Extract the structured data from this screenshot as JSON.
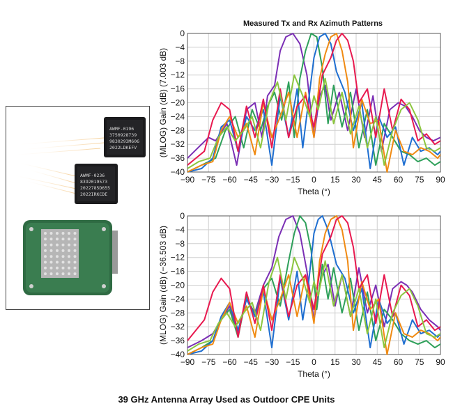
{
  "caption": "39 GHz Antenna Array Used as Outdoor CPE Units",
  "chips": [
    {
      "lines": [
        "AWMF-0196",
        "3750928739",
        "9830293M606",
        "2022LDKEFV"
      ]
    },
    {
      "lines": [
        "AWMF-0236",
        "8392019573",
        "2022785D655",
        "2022IRKCDE"
      ]
    }
  ],
  "colors": {
    "series": [
      "#7b2fb5",
      "#2ea05a",
      "#1f6fd1",
      "#f08a12",
      "#e8194f",
      "#8cc63f"
    ]
  },
  "chart_data": [
    {
      "type": "line",
      "title": "Measured Tx and Rx Azimuth Patterns",
      "xlabel": "Theta (°)",
      "ylabel": "(MLOG) Gain (dB) (7.003 dB)",
      "xlim": [
        -90,
        90
      ],
      "ylim": [
        -40,
        0
      ],
      "xticks": [
        -90,
        -75,
        -60,
        -45,
        -30,
        -15,
        0,
        15,
        30,
        45,
        60,
        75,
        90
      ],
      "yticks": [
        0,
        -4,
        -8,
        -12,
        -16,
        -20,
        -24,
        -28,
        -32,
        -36,
        -40
      ],
      "grid": true,
      "series": [
        {
          "color": "#7b2fb5",
          "x": [
            -90,
            -80,
            -75,
            -70,
            -62,
            -55,
            -48,
            -42,
            -37,
            -33,
            -28,
            -24,
            -20,
            -15,
            -10,
            -5,
            0,
            4,
            8,
            12,
            18,
            24,
            30,
            36,
            42,
            48,
            54,
            60,
            65,
            70,
            75,
            80,
            85,
            90
          ],
          "y": [
            -36,
            -32,
            -30,
            -31,
            -26,
            -38,
            -22,
            -20,
            -30,
            -18,
            -15,
            -5,
            -1,
            0,
            -3,
            -12,
            -30,
            -18,
            -15,
            -25,
            -17,
            -28,
            -16,
            -30,
            -18,
            -34,
            -22,
            -20,
            -21,
            -24,
            -28,
            -30,
            -31,
            -30
          ]
        },
        {
          "color": "#2ea05a",
          "x": [
            -90,
            -80,
            -70,
            -63,
            -56,
            -50,
            -44,
            -38,
            -33,
            -28,
            -23,
            -18,
            -14,
            -10,
            -6,
            -2,
            2,
            6,
            10,
            14,
            20,
            26,
            32,
            38,
            44,
            50,
            56,
            62,
            68,
            74,
            80,
            86,
            90
          ],
          "y": [
            -40,
            -38,
            -36,
            -28,
            -24,
            -33,
            -22,
            -28,
            -21,
            -17,
            -25,
            -14,
            -30,
            -13,
            -5,
            0,
            -1,
            -10,
            -26,
            -15,
            -27,
            -17,
            -33,
            -22,
            -38,
            -26,
            -30,
            -34,
            -35,
            -37,
            -36,
            -38,
            -37
          ]
        },
        {
          "color": "#1f6fd1",
          "x": [
            -90,
            -80,
            -72,
            -66,
            -60,
            -54,
            -48,
            -42,
            -36,
            -30,
            -24,
            -18,
            -12,
            -8,
            -4,
            0,
            4,
            8,
            12,
            16,
            22,
            28,
            34,
            40,
            46,
            52,
            58,
            64,
            70,
            76,
            82,
            88,
            90
          ],
          "y": [
            -40,
            -39,
            -36,
            -27,
            -25,
            -34,
            -24,
            -28,
            -22,
            -38,
            -18,
            -30,
            -16,
            -33,
            -20,
            -7,
            -1,
            0,
            -3,
            -11,
            -17,
            -28,
            -20,
            -39,
            -24,
            -30,
            -27,
            -38,
            -30,
            -34,
            -33,
            -35,
            -34
          ]
        },
        {
          "color": "#f08a12",
          "x": [
            -90,
            -80,
            -72,
            -66,
            -60,
            -54,
            -48,
            -42,
            -36,
            -30,
            -24,
            -18,
            -12,
            -6,
            0,
            4,
            8,
            12,
            16,
            20,
            24,
            28,
            34,
            40,
            46,
            52,
            58,
            64,
            70,
            76,
            82,
            88,
            90
          ],
          "y": [
            -40,
            -38,
            -37,
            -28,
            -24,
            -30,
            -26,
            -35,
            -20,
            -30,
            -24,
            -17,
            -30,
            -17,
            -30,
            -13,
            -6,
            -1,
            0,
            -5,
            -14,
            -33,
            -19,
            -26,
            -25,
            -40,
            -28,
            -34,
            -35,
            -33,
            -34,
            -36,
            -35
          ]
        },
        {
          "color": "#e8194f",
          "x": [
            -90,
            -84,
            -78,
            -72,
            -66,
            -60,
            -54,
            -48,
            -42,
            -36,
            -30,
            -24,
            -18,
            -12,
            -6,
            0,
            6,
            12,
            16,
            20,
            24,
            28,
            32,
            38,
            44,
            50,
            56,
            62,
            68,
            74,
            80,
            86,
            90
          ],
          "y": [
            -38,
            -36,
            -34,
            -25,
            -20,
            -22,
            -34,
            -21,
            -30,
            -19,
            -33,
            -16,
            -30,
            -21,
            -18,
            -27,
            -12,
            -7,
            -2,
            0,
            -2,
            -8,
            -20,
            -16,
            -30,
            -16,
            -28,
            -19,
            -22,
            -31,
            -29,
            -32,
            -31
          ]
        },
        {
          "color": "#8cc63f",
          "x": [
            -90,
            -82,
            -74,
            -68,
            -62,
            -56,
            -50,
            -44,
            -38,
            -32,
            -26,
            -20,
            -14,
            -8,
            -3,
            0,
            3,
            8,
            14,
            20,
            26,
            32,
            38,
            44,
            50,
            56,
            62,
            68,
            74,
            80,
            86,
            90
          ],
          "y": [
            -39,
            -37,
            -36,
            -30,
            -27,
            -31,
            -28,
            -24,
            -33,
            -20,
            -14,
            -25,
            -12,
            -18,
            -24,
            -18,
            -22,
            -13,
            -26,
            -17,
            -29,
            -21,
            -33,
            -24,
            -38,
            -28,
            -22,
            -20,
            -25,
            -33,
            -34,
            -33
          ]
        }
      ]
    },
    {
      "type": "line",
      "title": "",
      "xlabel": "Theta (°)",
      "ylabel": "(MLOG) Gain (dB) (-36.503 dB)",
      "xlim": [
        -90,
        90
      ],
      "ylim": [
        -40,
        0
      ],
      "xticks": [
        -90,
        -75,
        -60,
        -45,
        -30,
        -15,
        0,
        15,
        30,
        45,
        60,
        75,
        90
      ],
      "yticks": [
        0,
        -4,
        -8,
        -12,
        -16,
        -20,
        -24,
        -28,
        -32,
        -36,
        -40
      ],
      "grid": true,
      "series": [
        {
          "color": "#7b2fb5",
          "x": [
            -90,
            -80,
            -72,
            -66,
            -60,
            -54,
            -48,
            -42,
            -36,
            -30,
            -25,
            -20,
            -15,
            -10,
            -5,
            0,
            5,
            10,
            15,
            20,
            26,
            32,
            38,
            44,
            50,
            56,
            62,
            66,
            70,
            76,
            82,
            88,
            90
          ],
          "y": [
            -38,
            -36,
            -34,
            -30,
            -26,
            -34,
            -24,
            -28,
            -20,
            -15,
            -6,
            -1,
            0,
            -5,
            -16,
            -30,
            -18,
            -14,
            -26,
            -17,
            -29,
            -15,
            -28,
            -20,
            -32,
            -21,
            -19,
            -20,
            -22,
            -27,
            -30,
            -32,
            -33
          ]
        },
        {
          "color": "#2ea05a",
          "x": [
            -90,
            -80,
            -72,
            -66,
            -60,
            -54,
            -48,
            -42,
            -36,
            -30,
            -24,
            -18,
            -14,
            -10,
            -6,
            -2,
            2,
            6,
            10,
            14,
            20,
            26,
            32,
            38,
            44,
            50,
            56,
            62,
            68,
            74,
            80,
            86,
            90
          ],
          "y": [
            -40,
            -38,
            -36,
            -30,
            -27,
            -35,
            -23,
            -29,
            -21,
            -18,
            -26,
            -13,
            -5,
            0,
            -2,
            -10,
            -27,
            -14,
            -24,
            -15,
            -28,
            -18,
            -33,
            -22,
            -36,
            -27,
            -30,
            -34,
            -36,
            -37,
            -36,
            -38,
            -37
          ]
        },
        {
          "color": "#1f6fd1",
          "x": [
            -90,
            -80,
            -72,
            -66,
            -60,
            -54,
            -48,
            -42,
            -36,
            -30,
            -24,
            -18,
            -12,
            -8,
            -4,
            0,
            3,
            6,
            10,
            16,
            22,
            28,
            34,
            40,
            46,
            52,
            58,
            64,
            70,
            76,
            82,
            88,
            90
          ],
          "y": [
            -40,
            -39,
            -36,
            -29,
            -25,
            -33,
            -24,
            -29,
            -22,
            -38,
            -18,
            -30,
            -16,
            -30,
            -20,
            -5,
            -1,
            0,
            -4,
            -14,
            -18,
            -28,
            -21,
            -38,
            -24,
            -31,
            -28,
            -37,
            -30,
            -34,
            -33,
            -35,
            -34
          ]
        },
        {
          "color": "#f08a12",
          "x": [
            -90,
            -80,
            -72,
            -66,
            -60,
            -54,
            -48,
            -42,
            -36,
            -30,
            -24,
            -18,
            -12,
            -6,
            0,
            4,
            8,
            12,
            16,
            20,
            24,
            28,
            34,
            40,
            46,
            52,
            58,
            64,
            70,
            76,
            82,
            88,
            90
          ],
          "y": [
            -40,
            -38,
            -37,
            -30,
            -25,
            -31,
            -26,
            -35,
            -21,
            -30,
            -24,
            -17,
            -29,
            -17,
            -31,
            -13,
            -5,
            -1,
            0,
            -4,
            -13,
            -33,
            -19,
            -27,
            -24,
            -40,
            -28,
            -34,
            -35,
            -33,
            -34,
            -36,
            -35
          ]
        },
        {
          "color": "#e8194f",
          "x": [
            -90,
            -84,
            -78,
            -72,
            -66,
            -60,
            -54,
            -48,
            -42,
            -36,
            -30,
            -24,
            -18,
            -12,
            -6,
            0,
            6,
            12,
            16,
            20,
            24,
            28,
            32,
            38,
            44,
            50,
            56,
            62,
            68,
            74,
            80,
            86,
            90
          ],
          "y": [
            -36,
            -33,
            -30,
            -22,
            -18,
            -21,
            -35,
            -22,
            -31,
            -20,
            -33,
            -17,
            -29,
            -20,
            -17,
            -27,
            -11,
            -6,
            -1,
            0,
            -2,
            -9,
            -21,
            -17,
            -31,
            -17,
            -29,
            -20,
            -23,
            -32,
            -30,
            -33,
            -32
          ]
        },
        {
          "color": "#8cc63f",
          "x": [
            -90,
            -82,
            -74,
            -68,
            -62,
            -56,
            -50,
            -44,
            -38,
            -32,
            -26,
            -20,
            -14,
            -8,
            -3,
            0,
            3,
            8,
            14,
            20,
            26,
            32,
            38,
            44,
            50,
            56,
            62,
            68,
            74,
            80,
            86,
            90
          ],
          "y": [
            -39,
            -37,
            -36,
            -31,
            -28,
            -32,
            -28,
            -25,
            -33,
            -19,
            -12,
            -24,
            -12,
            -18,
            -25,
            -19,
            -23,
            -13,
            -26,
            -17,
            -29,
            -21,
            -34,
            -24,
            -38,
            -28,
            -23,
            -21,
            -26,
            -34,
            -35,
            -34
          ]
        }
      ]
    }
  ]
}
